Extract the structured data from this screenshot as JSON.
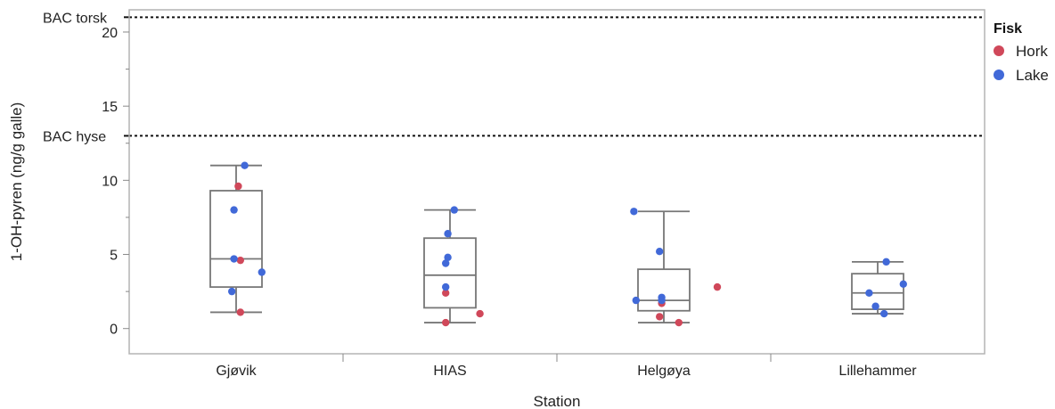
{
  "chart_data": {
    "type": "box",
    "xlabel": "Station",
    "ylabel": "1-OH-pyren (ng/g galle)",
    "ylim": [
      -1.7,
      21.5
    ],
    "yticks": [
      0,
      5,
      10,
      15,
      20
    ],
    "categories": [
      "Gjøvik",
      "HIAS",
      "Helgøya",
      "Lillehammer"
    ],
    "reference_lines": [
      {
        "label": "BAC torsk",
        "value": 21.0
      },
      {
        "label": "BAC hyse",
        "value": 13.0
      }
    ],
    "boxes": [
      {
        "category": "Gjøvik",
        "min": 1.1,
        "q1": 2.8,
        "median": 4.7,
        "q3": 9.3,
        "max": 11.0
      },
      {
        "category": "HIAS",
        "min": 0.4,
        "q1": 1.4,
        "median": 3.6,
        "q3": 6.1,
        "max": 8.0
      },
      {
        "category": "Helgøya",
        "min": 0.4,
        "q1": 1.2,
        "median": 1.9,
        "q3": 4.0,
        "max": 7.9
      },
      {
        "category": "Lillehammer",
        "min": 1.0,
        "q1": 1.3,
        "median": 2.4,
        "q3": 3.7,
        "max": 4.5
      }
    ],
    "legend": {
      "title": "Fisk",
      "position": "right"
    },
    "series": [
      {
        "name": "Hork",
        "color": "#d0485a",
        "points": [
          {
            "x": "Gjøvik",
            "y": 9.6,
            "jitter": 0.01
          },
          {
            "x": "Gjøvik",
            "y": 4.6,
            "jitter": 0.02
          },
          {
            "x": "Gjøvik",
            "y": 1.1,
            "jitter": 0.02
          },
          {
            "x": "HIAS",
            "y": 2.4,
            "jitter": -0.02
          },
          {
            "x": "HIAS",
            "y": 1.0,
            "jitter": 0.14
          },
          {
            "x": "HIAS",
            "y": 0.4,
            "jitter": -0.02
          },
          {
            "x": "Helgøya",
            "y": 2.8,
            "jitter": 0.25
          },
          {
            "x": "Helgøya",
            "y": 1.7,
            "jitter": -0.01
          },
          {
            "x": "Helgøya",
            "y": 0.8,
            "jitter": -0.02
          },
          {
            "x": "Helgøya",
            "y": 0.4,
            "jitter": 0.07
          }
        ]
      },
      {
        "name": "Lake",
        "color": "#4169d8",
        "points": [
          {
            "x": "Gjøvik",
            "y": 11.0,
            "jitter": 0.04
          },
          {
            "x": "Gjøvik",
            "y": 8.0,
            "jitter": -0.01
          },
          {
            "x": "Gjøvik",
            "y": 4.7,
            "jitter": -0.01
          },
          {
            "x": "Gjøvik",
            "y": 3.8,
            "jitter": 0.12
          },
          {
            "x": "Gjøvik",
            "y": 2.5,
            "jitter": -0.02
          },
          {
            "x": "HIAS",
            "y": 8.0,
            "jitter": 0.02
          },
          {
            "x": "HIAS",
            "y": 6.4,
            "jitter": -0.01
          },
          {
            "x": "HIAS",
            "y": 4.8,
            "jitter": -0.01
          },
          {
            "x": "HIAS",
            "y": 4.4,
            "jitter": -0.02
          },
          {
            "x": "HIAS",
            "y": 2.8,
            "jitter": -0.02
          },
          {
            "x": "Helgøya",
            "y": 7.9,
            "jitter": -0.14
          },
          {
            "x": "Helgøya",
            "y": 5.2,
            "jitter": -0.02
          },
          {
            "x": "Helgøya",
            "y": 2.1,
            "jitter": -0.01
          },
          {
            "x": "Helgøya",
            "y": 1.9,
            "jitter": -0.01
          },
          {
            "x": "Helgøya",
            "y": 1.9,
            "jitter": -0.13
          },
          {
            "x": "Lillehammer",
            "y": 4.5,
            "jitter": 0.04
          },
          {
            "x": "Lillehammer",
            "y": 3.0,
            "jitter": 0.12
          },
          {
            "x": "Lillehammer",
            "y": 2.4,
            "jitter": -0.04
          },
          {
            "x": "Lillehammer",
            "y": 1.5,
            "jitter": -0.01
          },
          {
            "x": "Lillehammer",
            "y": 1.0,
            "jitter": 0.03
          }
        ]
      }
    ]
  }
}
